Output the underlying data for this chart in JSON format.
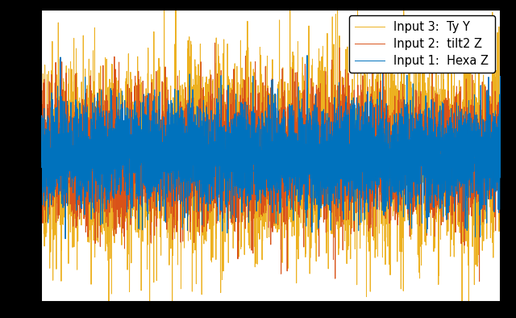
{
  "n_samples": 5000,
  "seed": 42,
  "colors": [
    "#0072BD",
    "#D95319",
    "#EDB120"
  ],
  "labels": [
    "Input 1:  Hexa Z",
    "Input 2:  tilt2 Z",
    "Input 3:  Ty Y"
  ],
  "linewidths": [
    0.7,
    0.7,
    0.7
  ],
  "plot_bg": "#ffffff",
  "fig_bg": "#000000",
  "legend_loc": "upper right",
  "legend_fontsize": 10.5,
  "figsize": [
    6.4,
    3.94
  ],
  "dpi": 100,
  "ylim": [
    -1.6,
    1.6
  ],
  "xlim": [
    0,
    5000
  ],
  "grid": true,
  "spine_color": "#000000",
  "sig1_std": 0.28,
  "sig2_std": 0.35,
  "sig3_std": 0.5
}
